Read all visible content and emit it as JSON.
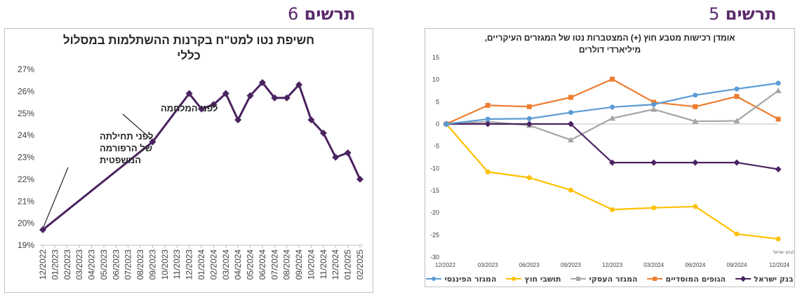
{
  "figures": {
    "fig6": {
      "label": "תרשים",
      "number": "6"
    },
    "fig5": {
      "label": "תרשים",
      "number": "5"
    }
  },
  "chart_data": [
    {
      "id": "fig6",
      "type": "line",
      "title_line1": "חשיפת נטו למט\"ח בקרנות ההשתלמות במסלול",
      "title_line2": "כללי",
      "xlabel": "",
      "ylabel": "",
      "ylim": [
        19,
        27
      ],
      "yticks": [
        19,
        20,
        21,
        22,
        23,
        24,
        25,
        26,
        27
      ],
      "ytick_suffix": "%",
      "grid": false,
      "legend": "none",
      "color": "#4b2360",
      "x": [
        "12/2022",
        "01/2023",
        "02/2023",
        "03/2023",
        "04/2023",
        "05/2023",
        "06/2023",
        "07/2023",
        "08/2023",
        "09/2023",
        "10/2023",
        "11/2023",
        "12/2023",
        "01/2024",
        "02/2024",
        "03/2024",
        "04/2024",
        "05/2024",
        "06/2024",
        "07/2024",
        "08/2024",
        "09/2024",
        "10/2024",
        "11/2024",
        "12/2024",
        "01/2025",
        "02/2025"
      ],
      "values": [
        19.7,
        null,
        null,
        null,
        null,
        null,
        null,
        null,
        null,
        23.7,
        null,
        null,
        25.9,
        25.2,
        25.4,
        25.9,
        24.7,
        25.8,
        26.4,
        25.7,
        25.7,
        26.3,
        24.7,
        24.1,
        23.0,
        23.2,
        22.0
      ],
      "annotations": [
        {
          "text": "לפני המלחמה",
          "x": "09/2023"
        },
        {
          "text_lines": [
            "לפני תחילתה",
            "של הרפורמה",
            "המשפטית"
          ],
          "x": "12/2022"
        }
      ]
    },
    {
      "id": "fig5",
      "type": "line",
      "title_line1": "אומדן רכישות מטבע חוץ (+) המצטברות נטו של המגזרים העיקריים,",
      "title_line2": "מיליארדי דולרים",
      "xlabel": "",
      "ylabel": "",
      "ylim": [
        -30,
        15
      ],
      "yticks": [
        15,
        10,
        5,
        0,
        -5,
        -10,
        -15,
        -20,
        -25,
        -30
      ],
      "grid": false,
      "legend": "bottom",
      "source_note": "מקור: עיבודים לדיווחים לבנק ישראל",
      "x": [
        "12/2022",
        "03/2023",
        "06/2023",
        "09/2023",
        "12/2023",
        "03/2024",
        "06/2024",
        "09/2024",
        "12/2024"
      ],
      "series": [
        {
          "name": "בנק ישראל",
          "color": "#4b2360",
          "marker": "diamond",
          "values": [
            0,
            0,
            0,
            0,
            -8.7,
            -8.7,
            -8.7,
            -8.7,
            -10.2
          ]
        },
        {
          "name": "הגופים המוסדיים",
          "color": "#ed7d31",
          "marker": "square",
          "values": [
            0,
            4.2,
            3.9,
            6.0,
            10.1,
            4.9,
            3.9,
            6.2,
            1.1
          ]
        },
        {
          "name": "המגזר העסקי",
          "color": "#a5a5a5",
          "marker": "triangle",
          "values": [
            0,
            0.5,
            -0.3,
            -3.6,
            1.3,
            3.3,
            0.6,
            0.7,
            7.5
          ]
        },
        {
          "name": "תושבי חוץ",
          "color": "#ffc000",
          "marker": "circle",
          "values": [
            0,
            -10.8,
            -12.1,
            -14.9,
            -19.3,
            -18.9,
            -18.6,
            -24.8,
            -25.9
          ]
        },
        {
          "name": "המגזר הפיננסי",
          "color": "#5b9bd5",
          "marker": "circle",
          "values": [
            0,
            1.1,
            1.2,
            2.6,
            3.8,
            4.4,
            6.5,
            7.9,
            9.2
          ]
        }
      ]
    }
  ]
}
